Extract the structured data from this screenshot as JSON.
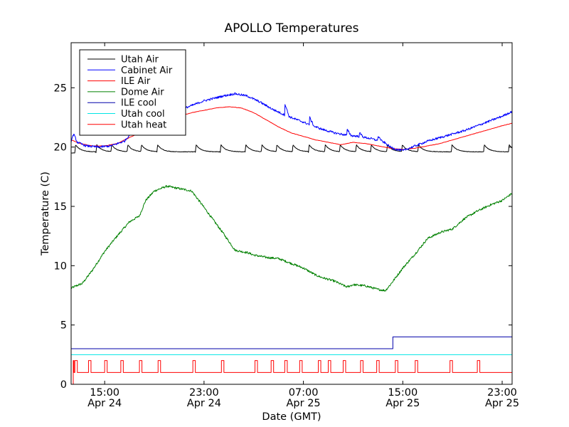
{
  "chart_data": {
    "type": "line",
    "title": "APOLLO Temperatures",
    "xlabel": "Date (GMT)",
    "ylabel": "Temperature (C)",
    "xlim_hours": [
      12.3,
      47.8
    ],
    "ylim": [
      0,
      28.8
    ],
    "grid": false,
    "legend_position": "top-left",
    "y_ticks": [
      0,
      5,
      10,
      15,
      20,
      25
    ],
    "x_ticks": [
      {
        "hour": 15,
        "time": "15:00",
        "date": "Apr 24"
      },
      {
        "hour": 23,
        "time": "23:00",
        "date": "Apr 24"
      },
      {
        "hour": 31,
        "time": "07:00",
        "date": "Apr 25"
      },
      {
        "hour": 39,
        "time": "15:00",
        "date": "Apr 25"
      },
      {
        "hour": 47,
        "time": "23:00",
        "date": "Apr 25"
      }
    ],
    "series": [
      {
        "name": "Utah Air",
        "color": "#000000",
        "style": "sawtooth",
        "base": 19.6,
        "peak": 20.2,
        "start_value": 19.5,
        "spikes": [
          12.6,
          14.3,
          15.5,
          16.8,
          17.9,
          19.2,
          22.3,
          24.3,
          26.3,
          27.6,
          28.8,
          30.1,
          31.4,
          32.7,
          33.9,
          35.2,
          36.4,
          37.7,
          38.9,
          40.2,
          42.9,
          45.5,
          47.5
        ]
      },
      {
        "name": "Cabinet Air",
        "color": "#0000ff",
        "style": "noisy",
        "x": [
          12.3,
          12.5,
          12.8,
          13.5,
          14.5,
          15.5,
          16.6,
          17.2,
          18.5,
          20.0,
          21.5,
          23.0,
          24.5,
          25.5,
          26.5,
          27.5,
          28.5,
          29.5,
          30.5,
          31.5,
          32.5,
          33.5,
          34.5,
          35.5,
          36.5,
          37.5,
          38.0,
          38.5,
          39.0,
          40.0,
          41.0,
          42.0,
          43.0,
          44.0,
          45.0,
          46.0,
          47.0,
          47.8
        ],
        "values": [
          20.5,
          21.1,
          20.4,
          20.1,
          20.0,
          20.1,
          20.5,
          21.3,
          22.0,
          22.8,
          23.3,
          23.9,
          24.3,
          24.5,
          24.3,
          23.8,
          23.2,
          22.7,
          22.3,
          21.9,
          21.5,
          21.2,
          21.0,
          20.9,
          20.7,
          20.4,
          20.0,
          19.8,
          19.7,
          20.1,
          20.5,
          20.8,
          21.1,
          21.4,
          21.8,
          22.2,
          22.6,
          23.0
        ],
        "bumps": [
          [
            29.5,
            1.0
          ],
          [
            31.5,
            0.6
          ],
          [
            34.5,
            0.5
          ],
          [
            35.5,
            0.3
          ],
          [
            37.0,
            0.4
          ]
        ]
      },
      {
        "name": "ILE Air",
        "color": "#ff0000",
        "style": "smooth",
        "x": [
          12.3,
          13.0,
          14.0,
          15.0,
          16.0,
          17.0,
          18.0,
          19.0,
          20.0,
          21.0,
          22.0,
          23.0,
          24.0,
          25.0,
          26.0,
          27.0,
          28.0,
          29.0,
          30.0,
          31.0,
          32.0,
          33.0,
          34.0,
          35.0,
          36.0,
          37.0,
          38.0,
          39.0,
          40.0,
          41.0,
          42.0,
          43.0,
          44.0,
          45.0,
          46.0,
          47.0,
          47.8
        ],
        "values": [
          20.6,
          20.3,
          20.1,
          20.1,
          20.3,
          20.8,
          21.3,
          21.8,
          22.3,
          22.6,
          22.9,
          23.1,
          23.3,
          23.4,
          23.3,
          22.9,
          22.3,
          21.7,
          21.2,
          20.9,
          20.6,
          20.4,
          20.2,
          20.4,
          20.3,
          20.1,
          19.9,
          19.8,
          19.9,
          20.1,
          20.3,
          20.6,
          20.9,
          21.2,
          21.5,
          21.8,
          22.0
        ]
      },
      {
        "name": "Dome Air",
        "color": "#008000",
        "style": "noisy",
        "x": [
          12.3,
          12.7,
          13.2,
          14.0,
          15.0,
          16.0,
          17.0,
          17.8,
          18.3,
          19.0,
          20.0,
          21.0,
          22.0,
          22.8,
          23.5,
          24.5,
          25.5,
          26.5,
          27.0,
          28.0,
          29.0,
          30.0,
          31.0,
          32.0,
          32.5,
          33.5,
          34.5,
          35.0,
          36.0,
          37.0,
          37.6,
          38.0,
          38.5,
          39.0,
          40.0,
          41.0,
          42.0,
          43.0,
          44.0,
          45.0,
          46.0,
          47.0,
          47.8
        ],
        "values": [
          8.1,
          8.3,
          8.5,
          9.6,
          11.2,
          12.5,
          13.7,
          14.2,
          15.5,
          16.3,
          16.7,
          16.5,
          16.3,
          15.2,
          14.2,
          12.8,
          11.3,
          11.1,
          10.9,
          10.7,
          10.6,
          10.2,
          9.8,
          9.2,
          9.0,
          8.7,
          8.2,
          8.4,
          8.3,
          8.0,
          7.9,
          8.4,
          9.1,
          9.8,
          11.0,
          12.3,
          12.8,
          13.1,
          14.0,
          14.6,
          15.1,
          15.5,
          16.1
        ]
      },
      {
        "name": "ILE cool",
        "color": "#0000aa",
        "style": "step",
        "x": [
          12.3,
          38.2,
          38.2,
          47.8
        ],
        "values": [
          3,
          3,
          4,
          4
        ]
      },
      {
        "name": "Utah cool",
        "color": "#00e5e5",
        "style": "flat",
        "x": [
          12.3,
          47.8
        ],
        "values": [
          2.5,
          2.5
        ]
      },
      {
        "name": "Utah heat",
        "color": "#ff0000",
        "style": "pulses",
        "base": 1,
        "high": 2,
        "pulses": [
          [
            12.6,
            12.8
          ],
          [
            13.7,
            13.9
          ],
          [
            15.0,
            15.2
          ],
          [
            16.3,
            16.5
          ],
          [
            17.8,
            18.0
          ],
          [
            19.3,
            19.5
          ],
          [
            22.1,
            22.3
          ],
          [
            24.4,
            24.6
          ],
          [
            27.1,
            27.3
          ],
          [
            28.4,
            28.6
          ],
          [
            29.5,
            29.7
          ],
          [
            30.7,
            30.9
          ],
          [
            32.2,
            32.4
          ],
          [
            33.0,
            33.2
          ],
          [
            34.2,
            34.4
          ],
          [
            35.6,
            35.8
          ],
          [
            36.9,
            37.1
          ],
          [
            38.4,
            38.6
          ],
          [
            40.0,
            40.2
          ],
          [
            42.8,
            43.0
          ],
          [
            45.0,
            45.2
          ]
        ]
      }
    ]
  }
}
